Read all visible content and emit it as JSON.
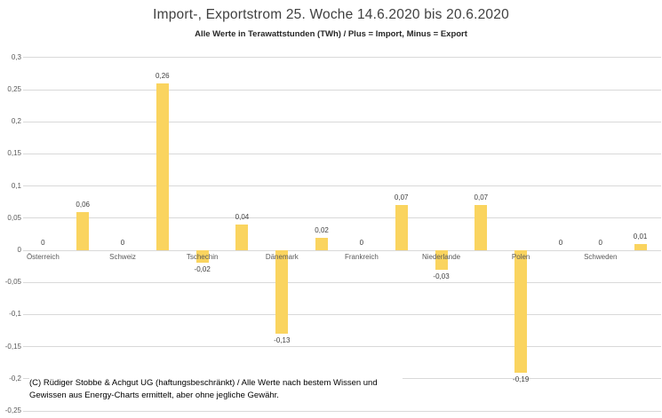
{
  "header": {
    "title": "Import-, Exportstrom 25. Woche 14.6.2020 bis 20.6.2020",
    "subtitle": "Alle Werte in Terawattstunden (TWh) / Plus = Import, Minus = Export"
  },
  "footer": {
    "line1": "(C) Rüdiger Stobbe & Achgut UG (haftungsbeschränkt) / Alle Werte nach bestem Wissen und",
    "line2": "Gewissen aus Energy-Charts ermittelt, aber ohne jegliche Gewähr."
  },
  "colors": {
    "bar": "#fad45f",
    "grid": "#d9d9d9",
    "tick_text": "#595959",
    "category_text": "#595959",
    "value_text": "#404040",
    "title_text": "#404040"
  },
  "chart_data": {
    "type": "bar",
    "title": "Import-, Exportstrom 25. Woche 14.6.2020 bis 20.6.2020",
    "subtitle": "Alle Werte in Terawattstunden (TWh) / Plus = Import, Minus = Export",
    "unit": "TWh",
    "ylim": [
      -0.25,
      0.3
    ],
    "grid": true,
    "legend_position": "none",
    "ytick_values": [
      0.3,
      0.25,
      0.2,
      0.15,
      0.1,
      0.05,
      0,
      -0.05,
      -0.1,
      -0.15,
      -0.2,
      -0.25
    ],
    "ytick_labels": [
      "0,3",
      "0,25",
      "0,2",
      "0,15",
      "0,1",
      "0,05",
      "0",
      "-0,05",
      "-0,1",
      "-0,15",
      "-0,2",
      "-0,25"
    ],
    "categories": [
      "Österreich",
      "Schweiz",
      "Tschechin",
      "Dänemark",
      "Frankreich",
      "Niederlande",
      "Polen",
      "Schweden"
    ],
    "series": [
      {
        "name": "left-bar",
        "values": [
          0,
          0,
          -0.02,
          -0.13,
          0,
          -0.03,
          -0.19,
          0
        ],
        "labels": [
          "0",
          "0",
          "-0,02",
          "-0,13",
          "0",
          "-0,03",
          "-0,19",
          "0"
        ]
      },
      {
        "name": "right-bar",
        "values": [
          0.06,
          0.26,
          0.04,
          0.02,
          0.07,
          0.07,
          0,
          0.01
        ],
        "labels": [
          "0,06",
          "0,26",
          "0,04",
          "0,02",
          "0,07",
          "0,07",
          "0",
          "0,01"
        ]
      }
    ]
  }
}
